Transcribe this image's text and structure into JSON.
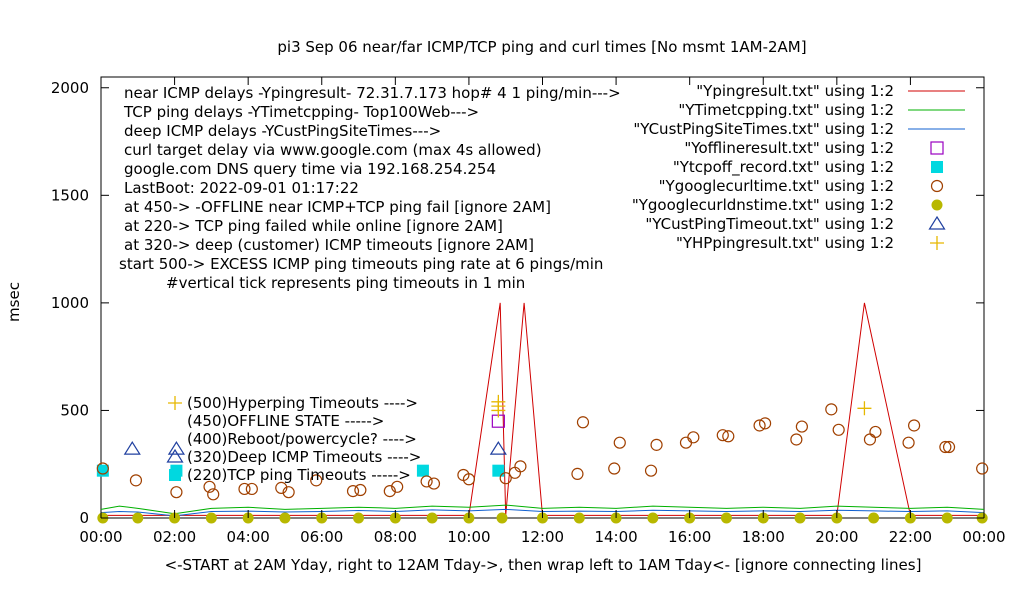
{
  "chart_data": {
    "type": "line",
    "title": "pi3 Sep 06  near/far ICMP/TCP ping and curl times [No msmt 1AM-2AM]",
    "xlabel": "<-START at 2AM Yday, right to 12AM Tday->, then wrap left to 1AM Tday<- [ignore connecting lines]",
    "ylabel": "msec",
    "xlim": [
      0,
      24
    ],
    "ylim": [
      0,
      2050
    ],
    "yticks": [
      0,
      500,
      1000,
      1500,
      2000
    ],
    "ytick_labels": [
      "0",
      "500",
      "1000",
      "1500",
      "2000"
    ],
    "xticks": [
      0,
      2,
      4,
      6,
      8,
      10,
      12,
      14,
      16,
      18,
      20,
      22,
      24
    ],
    "xtick_labels": [
      "00:00",
      "02:00",
      "04:00",
      "06:00",
      "08:00",
      "10:00",
      "12:00",
      "14:00",
      "16:00",
      "18:00",
      "20:00",
      "22:00",
      "00:00"
    ],
    "grid": false,
    "legend_position": "top-right",
    "info_lines": [
      "near ICMP delays -Ypingresult- 72.31.7.173 hop# 4 1 ping/min--->",
      "TCP ping delays -YTimetcpping- Top100Web--->",
      "deep ICMP delays -YCustPingSiteTimes--->",
      "curl target delay via www.google.com (max 4s allowed)",
      "google.com DNS query time via 192.168.254.254",
      "LastBoot: 2022-09-01 01:17:22",
      "at 450-> -OFFLINE near ICMP+TCP ping fail [ignore 2AM]",
      "at 220-> TCP ping failed while online [ignore 2AM]",
      "at 320-> deep (customer) ICMP timeouts [ignore 2AM]",
      "start 500-> EXCESS ICMP ping timeouts ping rate at 6 pings/min",
      "#vertical tick represents ping timeouts in 1 min"
    ],
    "key_lines": [
      {
        "label": "(500)Hyperping Timeouts ---->",
        "symbol": "plus",
        "color": "#e6b800"
      },
      {
        "label": "(450)OFFLINE STATE ----->",
        "symbol": "",
        "color": ""
      },
      {
        "label": "(400)Reboot/powercycle? ---->",
        "symbol": "",
        "color": ""
      },
      {
        "label": "(320)Deep ICMP Timeouts ---->",
        "symbol": "triangle",
        "color": "#2040a0"
      },
      {
        "label": "(220)TCP ping Timeouts ----->",
        "symbol": "square",
        "color": "#00d8e0"
      }
    ],
    "series": [
      {
        "name": "\"Ypingresult.txt\" using 1:2",
        "style": "line",
        "color": "#d00000",
        "x": [
          0,
          2,
          4,
          6,
          8,
          10,
          10.85,
          11.0,
          11.5,
          12,
          14,
          16,
          18,
          20,
          20.75,
          22,
          24
        ],
        "y": [
          12,
          12,
          12,
          12,
          12,
          12,
          1000,
          12,
          1000,
          12,
          12,
          12,
          12,
          12,
          1000,
          12,
          12
        ]
      },
      {
        "name": "\"YTimetcpping.txt\" using 1:2",
        "style": "line",
        "color": "#00b000",
        "x": [
          0,
          0.5,
          1,
          2,
          3,
          4,
          5,
          6,
          7,
          8,
          9,
          10,
          11,
          12,
          13,
          14,
          15,
          16,
          17,
          18,
          19,
          20,
          21,
          22,
          23,
          24
        ],
        "y": [
          40,
          55,
          45,
          20,
          45,
          50,
          40,
          45,
          50,
          45,
          55,
          50,
          60,
          45,
          50,
          45,
          55,
          50,
          45,
          50,
          45,
          55,
          50,
          45,
          50,
          40
        ]
      },
      {
        "name": "\"YCustPingSiteTimes.txt\" using 1:2",
        "style": "line",
        "color": "#1060d0",
        "x": [
          0,
          0.5,
          1,
          2,
          3,
          4,
          5,
          6,
          7,
          8,
          9,
          10,
          11,
          12,
          13,
          14,
          15,
          16,
          17,
          18,
          19,
          20,
          21,
          22,
          23,
          24
        ],
        "y": [
          25,
          30,
          28,
          10,
          30,
          32,
          28,
          30,
          35,
          30,
          38,
          33,
          40,
          30,
          32,
          30,
          36,
          33,
          30,
          33,
          30,
          36,
          33,
          30,
          33,
          25
        ]
      },
      {
        "name": "\"Yofflineresult.txt\" using 1:2",
        "style": "square_open",
        "color": "#9a00c0",
        "x": [
          10.8
        ],
        "y": [
          450
        ]
      },
      {
        "name": "\"Ytcpoff_record.txt\" using 1:2",
        "style": "square_filled",
        "color": "#00d8e0",
        "x": [
          0.05,
          2.05,
          8.75,
          10.8
        ],
        "y": [
          220,
          220,
          220,
          220
        ]
      },
      {
        "name": "\"Ygooglecurltime.txt\" using 1:2",
        "style": "circle_open",
        "color": "#a04000",
        "x": [
          0.05,
          0.95,
          2.05,
          2.95,
          3.05,
          3.9,
          4.1,
          4.9,
          5.1,
          5.85,
          6.85,
          7.05,
          7.85,
          8.05,
          8.85,
          9.05,
          9.85,
          10.0,
          11.0,
          11.25,
          11.4,
          12.95,
          13.1,
          13.95,
          14.1,
          14.95,
          15.1,
          15.9,
          16.1,
          16.9,
          17.05,
          17.9,
          18.05,
          18.9,
          19.05,
          19.85,
          20.05,
          20.9,
          21.05,
          21.95,
          22.1,
          22.95,
          23.05,
          23.95
        ],
        "y": [
          230,
          175,
          120,
          145,
          110,
          135,
          135,
          140,
          120,
          175,
          125,
          130,
          125,
          145,
          170,
          160,
          200,
          180,
          185,
          210,
          240,
          205,
          445,
          230,
          350,
          220,
          340,
          350,
          375,
          385,
          380,
          430,
          440,
          365,
          425,
          505,
          410,
          365,
          400,
          350,
          430,
          330,
          330,
          230
        ]
      },
      {
        "name": "\"Ygooglecurldnstime.txt\" using 1:2",
        "style": "circle_filled",
        "color": "#b8b800",
        "x": [
          0.05,
          1.0,
          2.0,
          3.0,
          4.0,
          5.0,
          6.0,
          7.0,
          8.0,
          9.0,
          10.0,
          10.9,
          12.0,
          13.0,
          14.0,
          15.0,
          16.0,
          17.0,
          18.0,
          19.0,
          20.0,
          21.0,
          22.0,
          23.0,
          23.95
        ],
        "y": [
          0,
          0,
          0,
          0,
          0,
          0,
          0,
          0,
          0,
          0,
          0,
          0,
          0,
          0,
          0,
          0,
          0,
          0,
          0,
          0,
          0,
          0,
          0,
          0,
          0
        ]
      },
      {
        "name": "\"YCustPingTimeout.txt\" using 1:2",
        "style": "triangle_open",
        "color": "#2040a0",
        "x": [
          0.85,
          2.05,
          10.8
        ],
        "y": [
          320,
          320,
          320
        ]
      },
      {
        "name": "\"YHPpingresult.txt\" using 1:2",
        "style": "plus",
        "color": "#e6b800",
        "x": [
          10.8,
          10.8,
          10.8,
          20.75
        ],
        "y": [
          500,
          520,
          540,
          510
        ]
      }
    ]
  }
}
